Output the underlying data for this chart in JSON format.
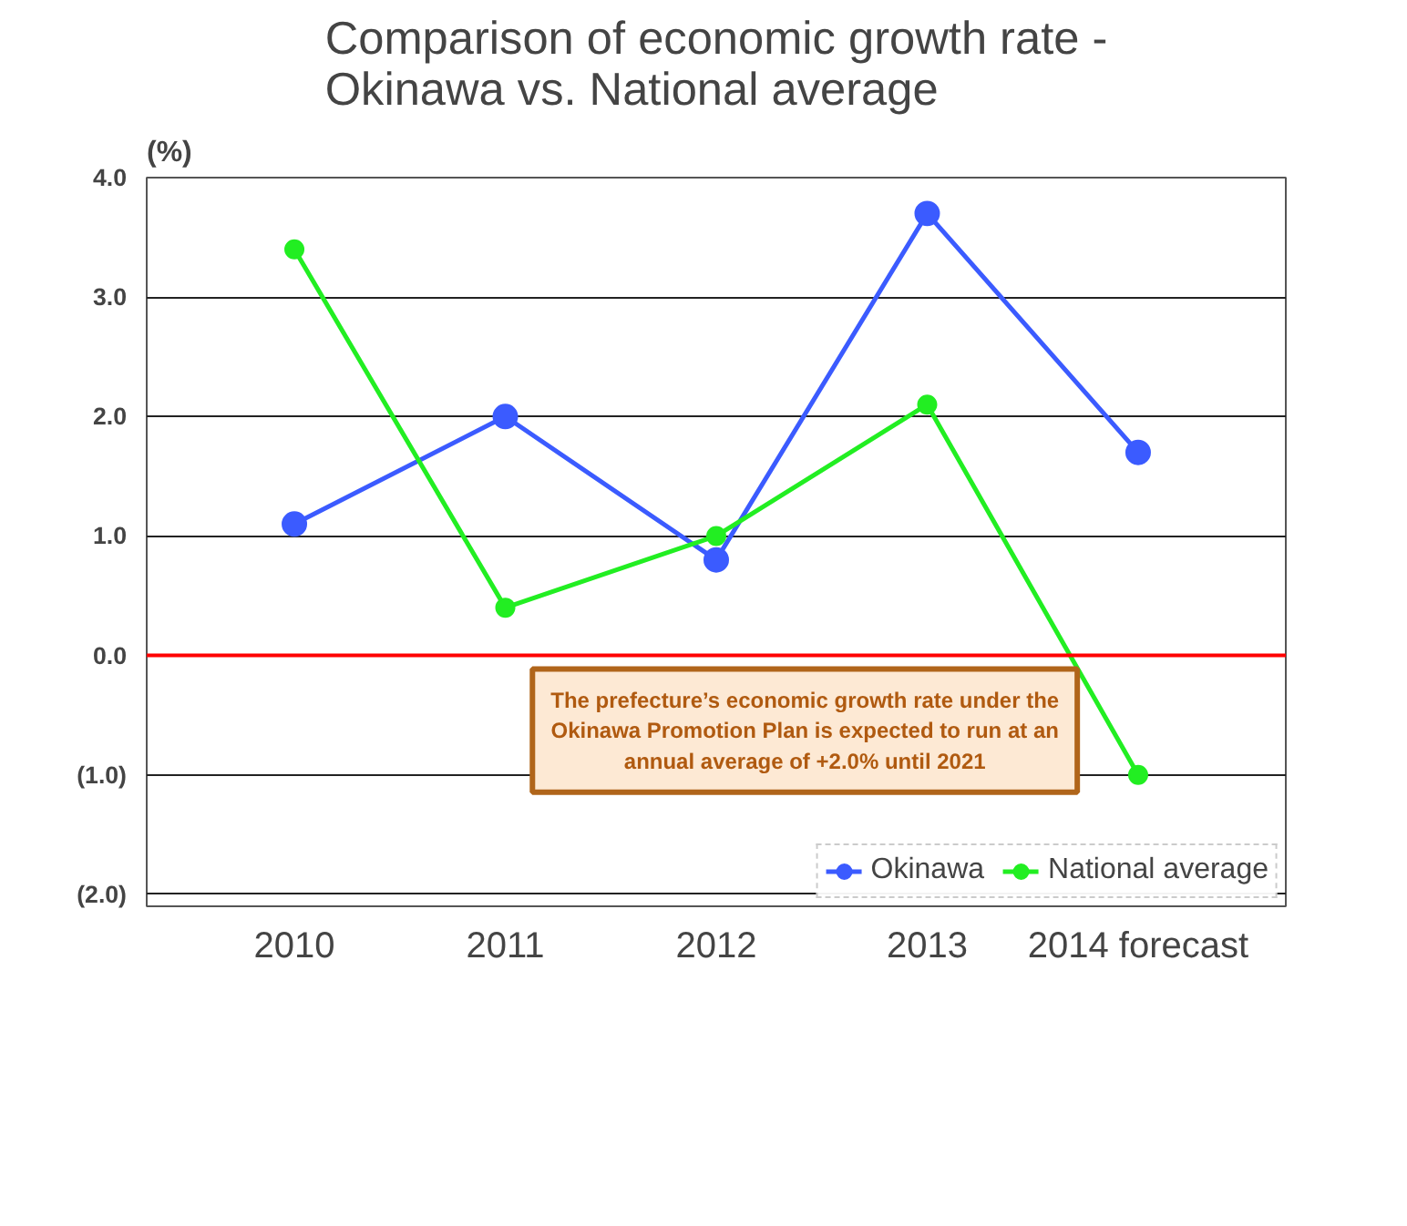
{
  "chart_data": {
    "type": "line",
    "title": "Comparison of economic growth rate - Okinawa vs. National average",
    "ylabel": "(%)",
    "categories": [
      "2010",
      "2011",
      "2012",
      "2013",
      "2014 forecast"
    ],
    "series": [
      {
        "name": "Okinawa",
        "color": "#3b5bff",
        "values": [
          1.1,
          2.0,
          0.8,
          3.7,
          1.7
        ]
      },
      {
        "name": "National average",
        "color": "#22ee22",
        "values": [
          3.4,
          0.4,
          1.0,
          2.1,
          -1.0
        ]
      }
    ],
    "ylim": [
      -2.1,
      4.0
    ],
    "yticks": [
      {
        "value": -2,
        "label": "(2.0)"
      },
      {
        "value": -1,
        "label": "(1.0)"
      },
      {
        "value": 0,
        "label": "0.0"
      },
      {
        "value": 1,
        "label": "1.0"
      },
      {
        "value": 2,
        "label": "2.0"
      },
      {
        "value": 3,
        "label": "3.0"
      },
      {
        "value": 4,
        "label": "4.0"
      }
    ],
    "ref_lines": [
      {
        "axis": "y",
        "value": 0,
        "color": "#ff0000"
      }
    ],
    "annotations": [
      "The prefecture’s economic growth rate under the Okinawa Promotion Plan is expected to run at an annual average of +2.0% until 2021"
    ],
    "grid": "y",
    "legend": "bottom right",
    "marker": "circle",
    "line_style": "solid"
  }
}
